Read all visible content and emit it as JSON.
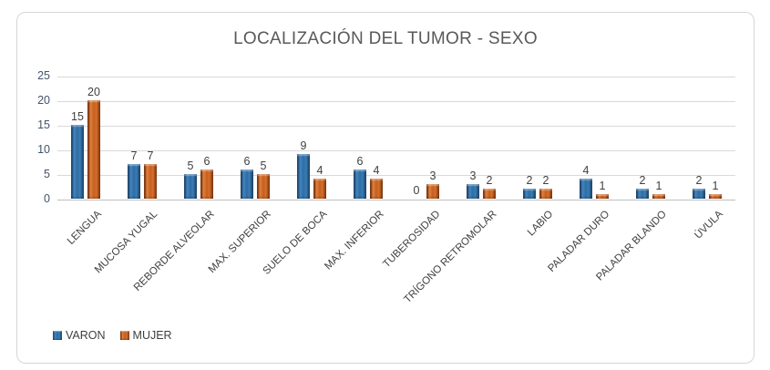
{
  "title": "LOCALIZACIÓN DEL TUMOR - SEXO",
  "colors": {
    "varon": "#2E6DA4",
    "varon_dark": "#1E4E79",
    "mujer": "#C55F1E",
    "mujer_dark": "#8C3A0F",
    "gridline": "#D9D9D9",
    "axis_line": "#BFBFBF",
    "title_text": "#595959",
    "tick_text": "#44546A",
    "label_text": "#404040",
    "frame_border": "#D6D6D6"
  },
  "chart_data": {
    "type": "bar",
    "title": "LOCALIZACIÓN DEL TUMOR - SEXO",
    "categories": [
      "LENGUA",
      "MUCOSA YUGAL",
      "REBORDE ALVEOLAR",
      "MAX. SUPERIOR",
      "SUELO DE BOCA",
      "MAX. INFERIOR",
      "TUBEROSIDAD",
      "TRÍGONO RETROMOLAR",
      "LABIO",
      "PALADAR DURO",
      "PALADAR BLANDO",
      "ÚVULA"
    ],
    "series": [
      {
        "name": "VARON",
        "color": "#2E6DA4",
        "values": [
          15,
          7,
          5,
          6,
          9,
          6,
          0,
          3,
          2,
          4,
          2,
          2
        ]
      },
      {
        "name": "MUJER",
        "color": "#C55F1E",
        "values": [
          20,
          7,
          6,
          5,
          4,
          4,
          3,
          2,
          2,
          1,
          1,
          1
        ]
      }
    ],
    "xlabel": "",
    "ylabel": "",
    "ylim": [
      0,
      25
    ],
    "yticks": [
      0,
      5,
      10,
      15,
      20,
      25
    ],
    "grid": true,
    "data_labels": true,
    "legend_position": "bottom-left"
  },
  "legend": {
    "items": [
      {
        "label": "VARON"
      },
      {
        "label": "MUJER"
      }
    ]
  }
}
